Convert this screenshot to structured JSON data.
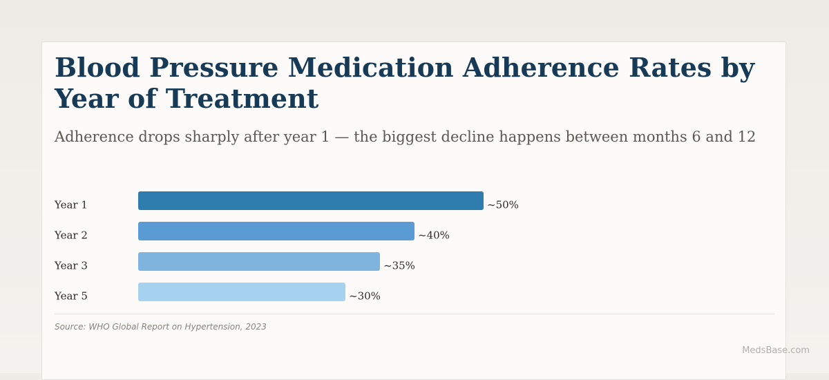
{
  "title": "Blood Pressure Medication Adherence Rates by Year of Treatment",
  "subtitle": "Adherence drops sharply after year 1 — the biggest decline happens between months 6 and 12",
  "source": "Source: WHO Global Report on Hypertension, 2023",
  "watermark": "MedsBase.com",
  "chart_data": {
    "type": "bar",
    "orientation": "horizontal",
    "categories": [
      "Year 1",
      "Year 2",
      "Year 3",
      "Year 5"
    ],
    "values": [
      50,
      40,
      35,
      30
    ],
    "value_labels": [
      "~50%",
      "~40%",
      "~35%",
      "~30%"
    ],
    "bar_colors": [
      "#2f7daf",
      "#5b9bd3",
      "#7fb4de",
      "#a6d2ef"
    ],
    "title": "Blood Pressure Medication Adherence Rates by Year of Treatment",
    "xlabel": "",
    "ylabel": "",
    "xlim": [
      0,
      100
    ],
    "grid": false,
    "legend": "none"
  }
}
